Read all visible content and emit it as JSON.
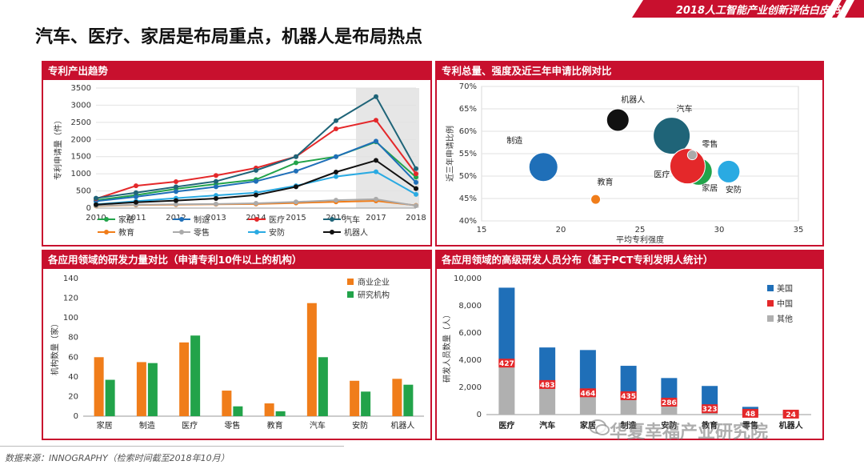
{
  "header": {
    "banner": "2018人工智能产业创新评估白皮书",
    "title": "汽车、医疗、家居是布局重点，机器人是布局热点"
  },
  "footer": {
    "source": "数据来源：INNOGRAPHY（检索时间截至2018年10月）"
  },
  "watermark": {
    "text": "华夏幸福产业研究院"
  },
  "colors": {
    "accent": "#c8102e"
  },
  "chart_data": [
    {
      "panel_title": "专利产出趋势",
      "type": "line",
      "ylabel": "专利申请量（件）",
      "ylim": [
        0,
        3500
      ],
      "yticks": [
        0,
        500,
        1000,
        1500,
        2000,
        2500,
        3000,
        3500
      ],
      "x": [
        "2010",
        "2011",
        "2012",
        "2013",
        "2014",
        "2015",
        "2016",
        "2017",
        "2018"
      ],
      "highlight_from": "2017",
      "series": [
        {
          "name": "家居",
          "color": "#22a34a",
          "values": [
            230,
            380,
            560,
            700,
            830,
            1320,
            1500,
            1930,
            900
          ]
        },
        {
          "name": "制造",
          "color": "#1f6fb8",
          "values": [
            200,
            330,
            480,
            620,
            780,
            1080,
            1500,
            1950,
            750
          ]
        },
        {
          "name": "医疗",
          "color": "#e4282a",
          "values": [
            270,
            650,
            770,
            950,
            1170,
            1500,
            2310,
            2560,
            1000
          ]
        },
        {
          "name": "汽车",
          "color": "#1f6478",
          "values": [
            290,
            450,
            620,
            780,
            1100,
            1500,
            2550,
            3250,
            1150
          ]
        },
        {
          "name": "教育",
          "color": "#f07d1a",
          "values": [
            60,
            90,
            100,
            110,
            120,
            150,
            180,
            210,
            80
          ]
        },
        {
          "name": "零售",
          "color": "#aaaaaa",
          "values": [
            70,
            100,
            110,
            120,
            140,
            180,
            230,
            260,
            70
          ]
        },
        {
          "name": "安防",
          "color": "#2aaae2",
          "values": [
            110,
            200,
            290,
            370,
            450,
            650,
            920,
            1060,
            400
          ]
        },
        {
          "name": "机器人",
          "color": "#111111",
          "values": [
            100,
            170,
            220,
            280,
            380,
            620,
            1050,
            1390,
            570
          ]
        }
      ]
    },
    {
      "panel_title": "专利总量、强度及近三年申请比例对比",
      "type": "scatter",
      "xlabel": "平均专利强度",
      "ylabel": "近三年申请比例",
      "xlim": [
        15,
        35
      ],
      "ylim": [
        40,
        70
      ],
      "xticks": [
        "15",
        "20",
        "25",
        "30",
        "35"
      ],
      "yticks": [
        "40%",
        "45%",
        "50%",
        "55%",
        "60%",
        "65%",
        "70%"
      ],
      "points": [
        {
          "name": "制造",
          "x": 18.9,
          "y": 52,
          "r": 18,
          "color": "#1f6fb8"
        },
        {
          "name": "教育",
          "x": 22.2,
          "y": 44.8,
          "r": 6,
          "color": "#f07d1a"
        },
        {
          "name": "机器人",
          "x": 23.6,
          "y": 62.5,
          "r": 14,
          "color": "#111111"
        },
        {
          "name": "汽车",
          "x": 27.0,
          "y": 59,
          "r": 23,
          "color": "#1f6478"
        },
        {
          "name": "家居",
          "x": 28.7,
          "y": 51,
          "r": 17,
          "color": "#22a34a"
        },
        {
          "name": "医疗",
          "x": 28.0,
          "y": 52.2,
          "r": 22,
          "color": "#e4282a"
        },
        {
          "name": "零售",
          "x": 28.3,
          "y": 54.7,
          "r": 6,
          "color": "#aaaaaa"
        },
        {
          "name": "安防",
          "x": 30.6,
          "y": 51,
          "r": 14,
          "color": "#2aaae2"
        }
      ]
    },
    {
      "panel_title": "各应用领域的研发力量对比（申请专利10件以上的机构）",
      "type": "bar",
      "ylabel": "机构数量（家）",
      "ylim": [
        0,
        140
      ],
      "yticks": [
        0,
        20,
        40,
        60,
        80,
        100,
        120,
        140
      ],
      "categories": [
        "家居",
        "制造",
        "医疗",
        "零售",
        "教育",
        "汽车",
        "安防",
        "机器人"
      ],
      "series": [
        {
          "name": "商业企业",
          "color": "#f07d1a",
          "values": [
            60,
            55,
            75,
            26,
            13,
            115,
            36,
            38
          ]
        },
        {
          "name": "研究机构",
          "color": "#22a34a",
          "values": [
            37,
            54,
            82,
            10,
            5,
            60,
            25,
            32
          ]
        }
      ]
    },
    {
      "panel_title": "各应用领域的高级研发人员分布（基于PCT专利发明人统计）",
      "type": "bar",
      "stacked": true,
      "ylabel": "研发人员数量（人）",
      "ylim": [
        0,
        10000
      ],
      "yticks": [
        "0",
        "2,000",
        "4,000",
        "6,000",
        "8,000",
        "10,000"
      ],
      "categories": [
        "医疗",
        "汽车",
        "家居",
        "制造",
        "安防",
        "教育",
        "零售",
        "机器人"
      ],
      "series": [
        {
          "name": "其他",
          "color": "#b0b0b0",
          "values": [
            3600,
            2000,
            1400,
            1200,
            800,
            300,
            100,
            50
          ]
        },
        {
          "name": "中国",
          "color": "#e4282a",
          "values": [
            427,
            483,
            464,
            435,
            286,
            323,
            48,
            24
          ]
        },
        {
          "name": "美国",
          "color": "#1f6fb8",
          "values": [
            5300,
            2450,
            2880,
            1950,
            1600,
            1480,
            420,
            170
          ]
        }
      ],
      "china_labels": [
        "427",
        "483",
        "464",
        "435",
        "286",
        "323",
        "48",
        "24"
      ]
    }
  ]
}
